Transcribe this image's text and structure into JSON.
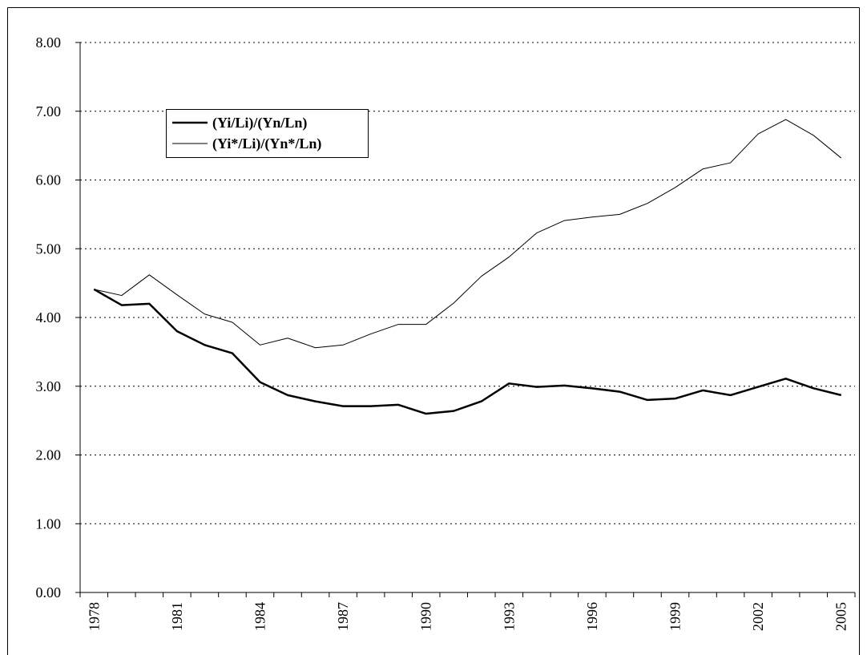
{
  "chart_data": {
    "type": "line",
    "categories": [
      "1978",
      null,
      null,
      "1981",
      null,
      null,
      "1984",
      null,
      null,
      "1987",
      null,
      null,
      "1990",
      null,
      null,
      "1993",
      null,
      null,
      "1996",
      null,
      null,
      "1999",
      null,
      null,
      "2002",
      null,
      null,
      "2005"
    ],
    "series": [
      {
        "name": "(Yi/Li)/(Yn/Ln)",
        "color": "#000000",
        "values": [
          4.41,
          4.18,
          4.2,
          3.8,
          3.6,
          3.48,
          3.06,
          2.87,
          2.78,
          2.71,
          2.71,
          2.73,
          2.6,
          2.64,
          2.78,
          3.04,
          2.99,
          3.01,
          2.97,
          2.92,
          2.8,
          2.82,
          2.94,
          2.87,
          2.99,
          3.11,
          2.97,
          2.87
        ]
      },
      {
        "name": "(Yi*/Li)/(Yn*/Ln)",
        "color": "#000000",
        "values": [
          4.41,
          4.32,
          4.62,
          4.33,
          4.05,
          3.93,
          3.6,
          3.7,
          3.56,
          3.6,
          3.76,
          3.9,
          3.9,
          4.21,
          4.6,
          4.88,
          5.23,
          5.41,
          5.46,
          5.5,
          5.66,
          5.89,
          6.16,
          6.25,
          6.67,
          6.88,
          6.65,
          6.32
        ]
      }
    ],
    "ylim": [
      0,
      8
    ],
    "yticks": [
      {
        "value": 0,
        "label": "0.00"
      },
      {
        "value": 1,
        "label": "1.00"
      },
      {
        "value": 2,
        "label": "2.00"
      },
      {
        "value": 3,
        "label": "3.00"
      },
      {
        "value": 4,
        "label": "4.00"
      },
      {
        "value": 5,
        "label": "5.00"
      },
      {
        "value": 6,
        "label": "6.00"
      },
      {
        "value": 7,
        "label": "7.00"
      },
      {
        "value": 8,
        "label": "8.00"
      }
    ],
    "grid": true,
    "legend": "upper-left"
  }
}
